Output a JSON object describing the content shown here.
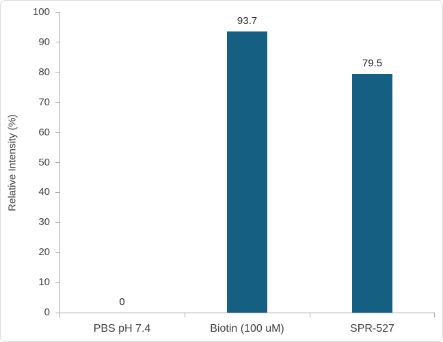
{
  "chart_data": {
    "type": "bar",
    "title": "",
    "categories": [
      "PBS pH 7.4",
      "Biotin (100 uM)",
      "SPR-527"
    ],
    "values": [
      0,
      93.7,
      79.5
    ],
    "data_labels": [
      "0",
      "93.7",
      "79.5"
    ],
    "xlabel": "",
    "ylabel": "Relative Intensity (%)",
    "ylim": [
      0,
      100
    ],
    "ytick_step": 10,
    "grid": false,
    "legend_position": "none",
    "colors": {
      "bar_fill": "#156082",
      "axis_line": "#a6a6a6",
      "tick_label": "#404040",
      "category_label": "#404040",
      "data_label": "#262626",
      "figure_border": "#d9d9d9",
      "background": "#ffffff"
    }
  }
}
